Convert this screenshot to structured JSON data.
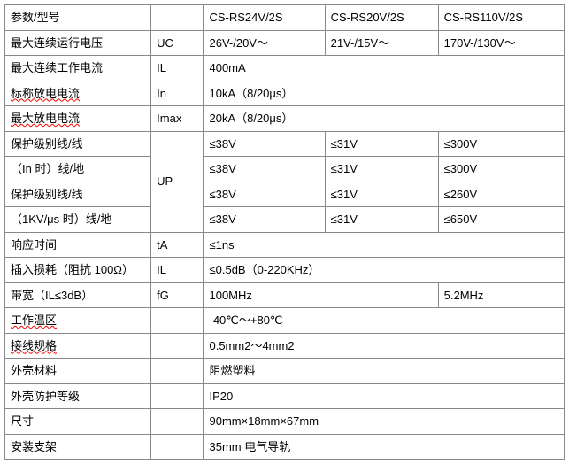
{
  "table": {
    "col_widths": {
      "c1": 160,
      "c2": 48,
      "c3": 130,
      "c4": 120,
      "c5": 135
    },
    "border_color": "#888888",
    "font_family": "SimSun",
    "font_size": 13,
    "rows": {
      "header": {
        "param": "参数/型号",
        "sym": "",
        "v1": "CS-RS24V/2S",
        "v2": "CS-RS20V/2S",
        "v3": "CS-RS110V/2S"
      },
      "uc": {
        "param": "最大连续运行电压",
        "sym": "UC",
        "v1": "26V-/20V～",
        "v2": "21V-/15V～",
        "v3": "170V-/130V～"
      },
      "il": {
        "param": "最大连续工作电流",
        "sym": "IL",
        "val": "400mA"
      },
      "in": {
        "param": "标称放电电流",
        "sym": "In",
        "val": "10kA（8/20μs）"
      },
      "imax": {
        "param": "最大放电电流",
        "sym": "Imax",
        "val": "20kA（8/20μs）"
      },
      "up1a": {
        "param": "保护级别线/线",
        "v1": "≤38V",
        "v2": "≤31V",
        "v3": "≤300V"
      },
      "up1b": {
        "param": "（In 时）线/地",
        "v1": "≤38V",
        "v2": "≤31V",
        "v3": "≤300V"
      },
      "up_sym": "UP",
      "up2a": {
        "param": "保护级别线/线",
        "v1": "≤38V",
        "v2": "≤31V",
        "v3": "≤260V"
      },
      "up2b": {
        "param": "（1KV/μs 时）线/地",
        "v1": "≤38V",
        "v2": "≤31V",
        "v3": "≤650V"
      },
      "ta": {
        "param": "响应时间",
        "sym": "tA",
        "val": "≤1ns"
      },
      "il2": {
        "param": "插入损耗（阻抗 100Ω）",
        "sym": "IL",
        "val": "≤0.5dB（0-220KHz）"
      },
      "fg": {
        "param": "带宽（IL≤3dB）",
        "sym": "fG",
        "v12": "100MHz",
        "v3": "5.2MHz"
      },
      "temp": {
        "param": "工作温区",
        "val": "-40℃～+80℃"
      },
      "wire": {
        "param": "接线规格",
        "val": "0.5mm2～4mm2"
      },
      "mat": {
        "param": "外壳材料",
        "val": "阻燃塑料"
      },
      "ip": {
        "param": "外壳防护等级",
        "val": "IP20"
      },
      "dim": {
        "param": "尺寸",
        "val": "90mm×18mm×67mm"
      },
      "mount": {
        "param": "安装支架",
        "val": "35mm 电气导轨"
      }
    }
  }
}
